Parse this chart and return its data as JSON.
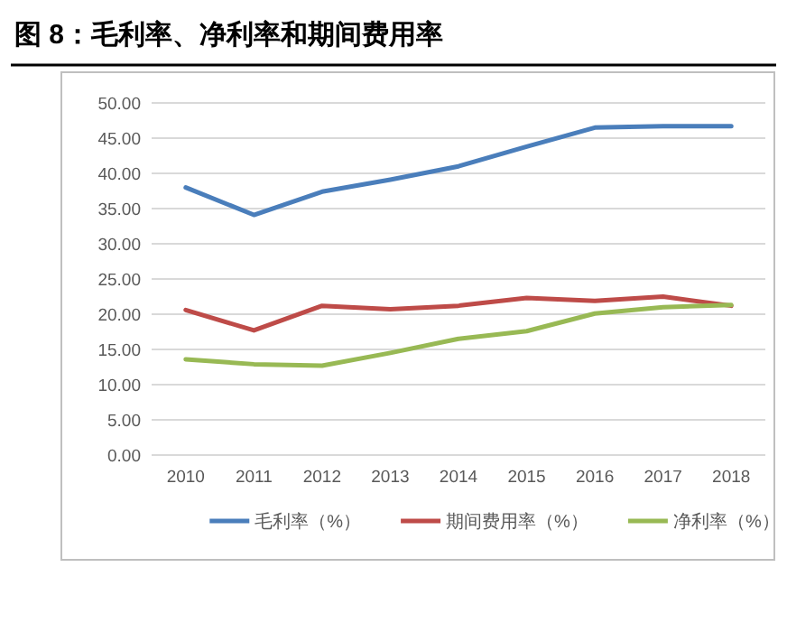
{
  "chart_data": {
    "type": "line",
    "title": "图 8：毛利率、净利率和期间费用率",
    "categories": [
      "2010",
      "2011",
      "2012",
      "2013",
      "2014",
      "2015",
      "2016",
      "2017",
      "2018"
    ],
    "series": [
      {
        "name": "毛利率（%）",
        "color": "#4a7ebb",
        "values": [
          38.0,
          34.1,
          37.4,
          39.1,
          41.0,
          43.8,
          46.5,
          46.7,
          46.7
        ]
      },
      {
        "name": "期间费用率（%）",
        "color": "#be4b48",
        "values": [
          20.6,
          17.7,
          21.2,
          20.7,
          21.2,
          22.3,
          21.9,
          22.5,
          21.2
        ]
      },
      {
        "name": "净利率（%）",
        "color": "#98b954",
        "values": [
          13.6,
          12.9,
          12.7,
          14.5,
          16.5,
          17.6,
          20.1,
          21.0,
          21.3
        ]
      }
    ],
    "ylim": [
      0,
      50
    ],
    "yticks": [
      {
        "value": 0,
        "label": "0.00"
      },
      {
        "value": 5,
        "label": "5.00"
      },
      {
        "value": 10,
        "label": "10.00"
      },
      {
        "value": 15,
        "label": "15.00"
      },
      {
        "value": 20,
        "label": "20.00"
      },
      {
        "value": 25,
        "label": "25.00"
      },
      {
        "value": 30,
        "label": "30.00"
      },
      {
        "value": 35,
        "label": "35.00"
      },
      {
        "value": 40,
        "label": "40.00"
      },
      {
        "value": 45,
        "label": "45.00"
      },
      {
        "value": 50,
        "label": "50.00"
      }
    ],
    "grid": "y",
    "legend": "bottom",
    "marker": "none",
    "line_style": "solid"
  }
}
